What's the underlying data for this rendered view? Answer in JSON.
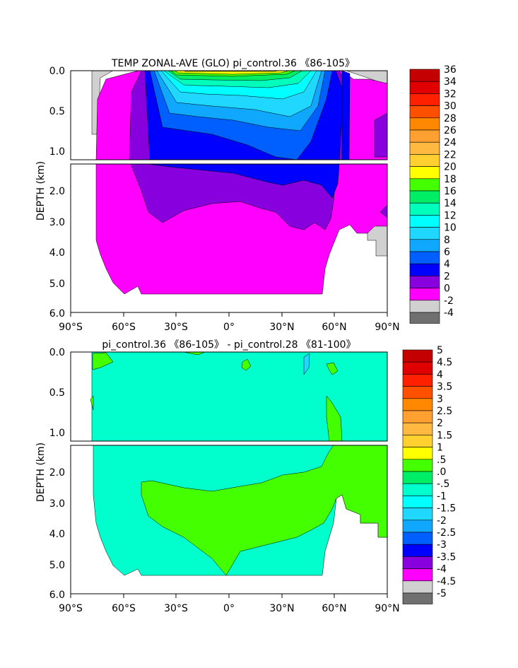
{
  "chart_data": [
    {
      "type": "contour",
      "title": "TEMP ZONAL-AVE (GLO) pi_control.36 《86-105》",
      "ylabel": "DEPTH (km)",
      "x_ticks": [
        "90°S",
        "60°S",
        "30°S",
        "0°",
        "30°N",
        "60°N",
        "90°N"
      ],
      "y_ticks_upper": [
        "0.0",
        "0.5",
        "1.0"
      ],
      "y_ticks_lower": [
        "2.0",
        "3.0",
        "4.0",
        "5.0",
        "6.0"
      ],
      "xlim": [
        -90,
        90
      ],
      "ylim_km": [
        0,
        6
      ],
      "colorbar_labels": [
        "36",
        "34",
        "32",
        "30",
        "28",
        "26",
        "24",
        "22",
        "20",
        "18",
        "16",
        "14",
        "12",
        "10",
        "8",
        "6",
        "4",
        "2",
        "0",
        "-2",
        "-4"
      ],
      "colorbar_colors": [
        "#c40000",
        "#e00000",
        "#ff2000",
        "#ff5000",
        "#ff8800",
        "#ffa030",
        "#ffb840",
        "#ffd030",
        "#ffff00",
        "#44ff00",
        "#00ee66",
        "#00ffbb",
        "#00ffff",
        "#20d8ff",
        "#10a8ff",
        "#0060ff",
        "#0000ff",
        "#8800dd",
        "#ff00ff",
        "#d0d0d0",
        "#707070"
      ]
    },
    {
      "type": "contour",
      "title": "pi_control.36 《86-105》 - pi_control.28 《81-100》",
      "ylabel": "DEPTH (km)",
      "x_ticks": [
        "90°S",
        "60°S",
        "30°S",
        "0°",
        "30°N",
        "60°N",
        "90°N"
      ],
      "y_ticks_upper": [
        "0.0",
        "0.5",
        "1.0"
      ],
      "y_ticks_lower": [
        "2.0",
        "3.0",
        "4.0",
        "5.0",
        "6.0"
      ],
      "xlim": [
        -90,
        90
      ],
      "ylim_km": [
        0,
        6
      ],
      "colorbar_labels": [
        "5",
        "4.5",
        "4",
        "3.5",
        "3",
        "2.5",
        "2",
        "1.5",
        "1",
        ".5",
        ".0",
        "-.5",
        "-1",
        "-1.5",
        "-2",
        "-2.5",
        "-3",
        "-3.5",
        "-4",
        "-4.5",
        "-5"
      ],
      "colorbar_colors": [
        "#c40000",
        "#e00000",
        "#ff2000",
        "#ff5000",
        "#ff8800",
        "#ffa030",
        "#ffb840",
        "#ffd030",
        "#ffff00",
        "#44ff00",
        "#00ee66",
        "#00ffcc",
        "#00ffff",
        "#20d8ff",
        "#10a8ff",
        "#0060ff",
        "#0000ff",
        "#8800dd",
        "#ff00ff",
        "#d0d0d0",
        "#707070"
      ]
    }
  ]
}
